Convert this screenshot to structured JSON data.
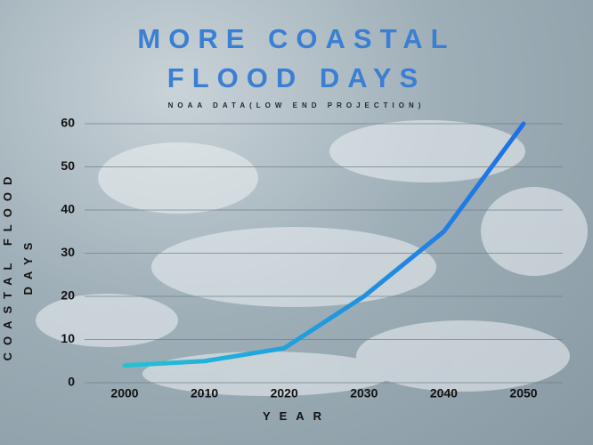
{
  "chart_data": {
    "type": "line",
    "title": "MORE COASTAL FLOOD DAYS",
    "subtitle": "NOAA DATA(LOW END PROJECTION)",
    "x_label": "YEAR",
    "y_label": "COASTAL FLOOD DAYS",
    "categories": [
      "2000",
      "2010",
      "2020",
      "2030",
      "2040",
      "2050"
    ],
    "values": [
      4,
      5,
      8,
      20,
      35,
      60
    ],
    "colors": [
      "#22c3d6",
      "#1f6fe6"
    ],
    "ylim": [
      0,
      60
    ],
    "yticks": [
      0,
      10,
      20,
      30,
      40,
      50,
      60
    ],
    "grid": true
  }
}
